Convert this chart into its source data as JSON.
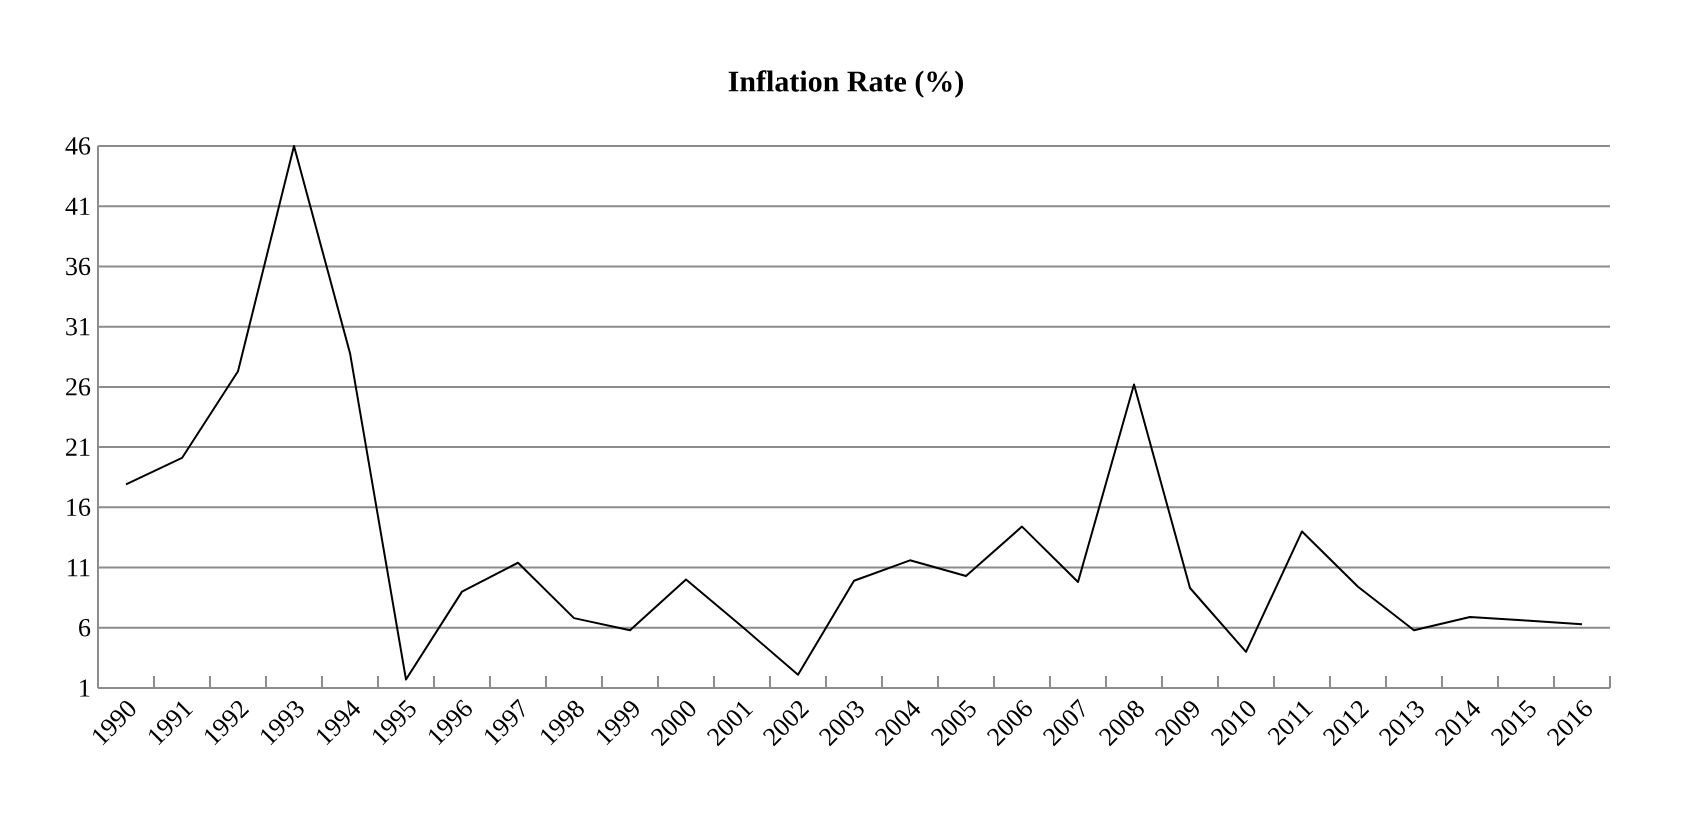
{
  "chart_data": {
    "type": "line",
    "title": "Inflation Rate (%)",
    "categories": [
      "1990",
      "1991",
      "1992",
      "1993",
      "1994",
      "1995",
      "1996",
      "1997",
      "1998",
      "1999",
      "2000",
      "2001",
      "2002",
      "2003",
      "2004",
      "2005",
      "2006",
      "2007",
      "2008",
      "2009",
      "2010",
      "2011",
      "2012",
      "2013",
      "2014",
      "2015",
      "2016"
    ],
    "series": [
      {
        "color": "#000000",
        "values": [
          17.9,
          20.1,
          27.3,
          46,
          28.8,
          1.7,
          9.0,
          11.4,
          6.8,
          5.8,
          10.0,
          6.1,
          2.1,
          9.9,
          11.6,
          10.3,
          14.4,
          9.8,
          26.2,
          9.3,
          4.0,
          14.0,
          9.4,
          5.8,
          6.9,
          6.6,
          6.3
        ]
      }
    ],
    "ylim": [
      1,
      46
    ],
    "yticks": [
      1,
      6,
      11,
      16,
      21,
      26,
      31,
      36,
      41,
      46
    ],
    "grid": "y",
    "marker": "none",
    "line_style": "solid"
  }
}
